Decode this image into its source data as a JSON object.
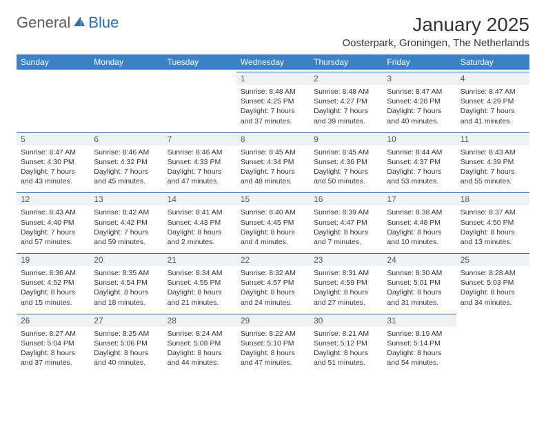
{
  "logo": {
    "text_general": "General",
    "text_blue": "Blue",
    "icon_color": "#2a6db5"
  },
  "title": "January 2025",
  "location": "Oosterpark, Groningen, The Netherlands",
  "colors": {
    "header_bg": "#3b82c4",
    "header_text": "#ffffff",
    "daynum_bg": "#eef2f5",
    "daynum_border": "#2a6db5",
    "text": "#333333",
    "page_bg": "#ffffff"
  },
  "day_headers": [
    "Sunday",
    "Monday",
    "Tuesday",
    "Wednesday",
    "Thursday",
    "Friday",
    "Saturday"
  ],
  "weeks": [
    [
      null,
      null,
      null,
      {
        "day": "1",
        "sunrise": "8:48 AM",
        "sunset": "4:25 PM",
        "daylight": "7 hours and 37 minutes."
      },
      {
        "day": "2",
        "sunrise": "8:48 AM",
        "sunset": "4:27 PM",
        "daylight": "7 hours and 39 minutes."
      },
      {
        "day": "3",
        "sunrise": "8:47 AM",
        "sunset": "4:28 PM",
        "daylight": "7 hours and 40 minutes."
      },
      {
        "day": "4",
        "sunrise": "8:47 AM",
        "sunset": "4:29 PM",
        "daylight": "7 hours and 41 minutes."
      }
    ],
    [
      {
        "day": "5",
        "sunrise": "8:47 AM",
        "sunset": "4:30 PM",
        "daylight": "7 hours and 43 minutes."
      },
      {
        "day": "6",
        "sunrise": "8:46 AM",
        "sunset": "4:32 PM",
        "daylight": "7 hours and 45 minutes."
      },
      {
        "day": "7",
        "sunrise": "8:46 AM",
        "sunset": "4:33 PM",
        "daylight": "7 hours and 47 minutes."
      },
      {
        "day": "8",
        "sunrise": "8:45 AM",
        "sunset": "4:34 PM",
        "daylight": "7 hours and 48 minutes."
      },
      {
        "day": "9",
        "sunrise": "8:45 AM",
        "sunset": "4:36 PM",
        "daylight": "7 hours and 50 minutes."
      },
      {
        "day": "10",
        "sunrise": "8:44 AM",
        "sunset": "4:37 PM",
        "daylight": "7 hours and 53 minutes."
      },
      {
        "day": "11",
        "sunrise": "8:43 AM",
        "sunset": "4:39 PM",
        "daylight": "7 hours and 55 minutes."
      }
    ],
    [
      {
        "day": "12",
        "sunrise": "8:43 AM",
        "sunset": "4:40 PM",
        "daylight": "7 hours and 57 minutes."
      },
      {
        "day": "13",
        "sunrise": "8:42 AM",
        "sunset": "4:42 PM",
        "daylight": "7 hours and 59 minutes."
      },
      {
        "day": "14",
        "sunrise": "8:41 AM",
        "sunset": "4:43 PM",
        "daylight": "8 hours and 2 minutes."
      },
      {
        "day": "15",
        "sunrise": "8:40 AM",
        "sunset": "4:45 PM",
        "daylight": "8 hours and 4 minutes."
      },
      {
        "day": "16",
        "sunrise": "8:39 AM",
        "sunset": "4:47 PM",
        "daylight": "8 hours and 7 minutes."
      },
      {
        "day": "17",
        "sunrise": "8:38 AM",
        "sunset": "4:48 PM",
        "daylight": "8 hours and 10 minutes."
      },
      {
        "day": "18",
        "sunrise": "8:37 AM",
        "sunset": "4:50 PM",
        "daylight": "8 hours and 13 minutes."
      }
    ],
    [
      {
        "day": "19",
        "sunrise": "8:36 AM",
        "sunset": "4:52 PM",
        "daylight": "8 hours and 15 minutes."
      },
      {
        "day": "20",
        "sunrise": "8:35 AM",
        "sunset": "4:54 PM",
        "daylight": "8 hours and 18 minutes."
      },
      {
        "day": "21",
        "sunrise": "8:34 AM",
        "sunset": "4:55 PM",
        "daylight": "8 hours and 21 minutes."
      },
      {
        "day": "22",
        "sunrise": "8:32 AM",
        "sunset": "4:57 PM",
        "daylight": "8 hours and 24 minutes."
      },
      {
        "day": "23",
        "sunrise": "8:31 AM",
        "sunset": "4:59 PM",
        "daylight": "8 hours and 27 minutes."
      },
      {
        "day": "24",
        "sunrise": "8:30 AM",
        "sunset": "5:01 PM",
        "daylight": "8 hours and 31 minutes."
      },
      {
        "day": "25",
        "sunrise": "8:28 AM",
        "sunset": "5:03 PM",
        "daylight": "8 hours and 34 minutes."
      }
    ],
    [
      {
        "day": "26",
        "sunrise": "8:27 AM",
        "sunset": "5:04 PM",
        "daylight": "8 hours and 37 minutes."
      },
      {
        "day": "27",
        "sunrise": "8:25 AM",
        "sunset": "5:06 PM",
        "daylight": "8 hours and 40 minutes."
      },
      {
        "day": "28",
        "sunrise": "8:24 AM",
        "sunset": "5:08 PM",
        "daylight": "8 hours and 44 minutes."
      },
      {
        "day": "29",
        "sunrise": "8:22 AM",
        "sunset": "5:10 PM",
        "daylight": "8 hours and 47 minutes."
      },
      {
        "day": "30",
        "sunrise": "8:21 AM",
        "sunset": "5:12 PM",
        "daylight": "8 hours and 51 minutes."
      },
      {
        "day": "31",
        "sunrise": "8:19 AM",
        "sunset": "5:14 PM",
        "daylight": "8 hours and 54 minutes."
      },
      null
    ]
  ],
  "labels": {
    "sunrise_prefix": "Sunrise: ",
    "sunset_prefix": "Sunset: ",
    "daylight_prefix": "Daylight: "
  }
}
